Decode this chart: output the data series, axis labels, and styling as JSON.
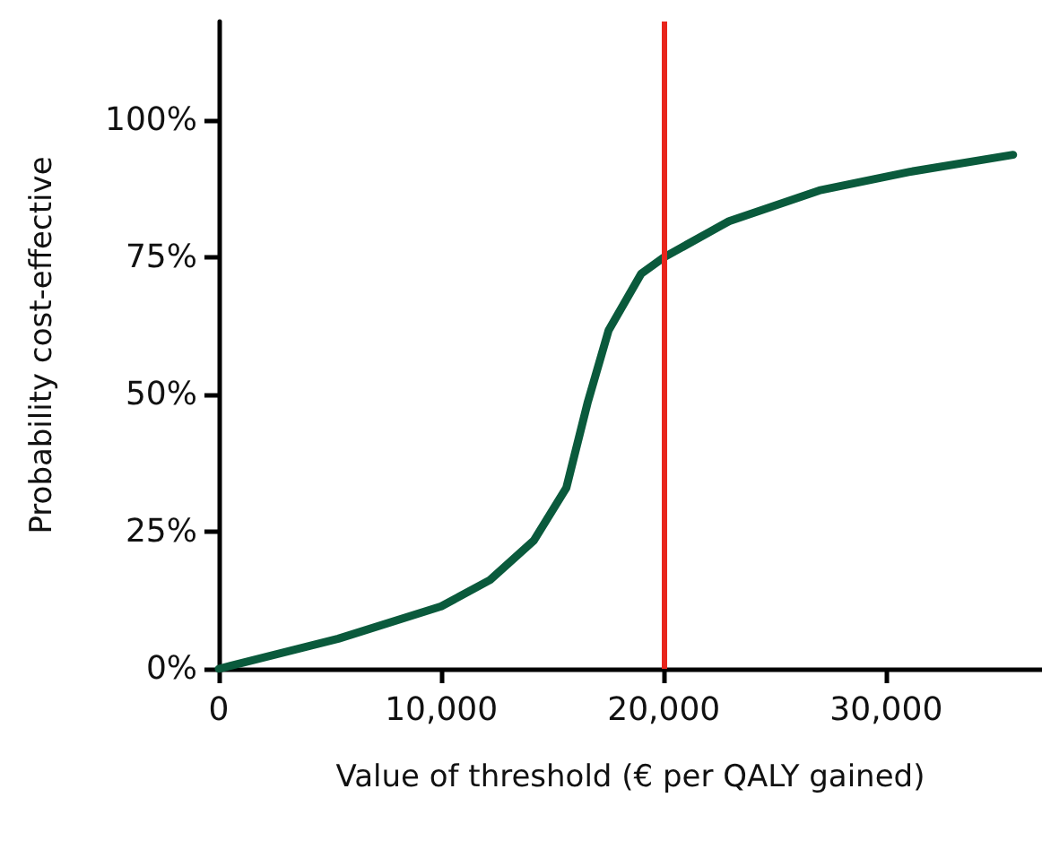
{
  "chart_data": {
    "type": "line",
    "xlabel": "Value of threshold (€ per QALY gained)",
    "ylabel": "Probability cost-effective",
    "x": [
      0,
      5370,
      10000,
      12190,
      14160,
      15620,
      16570,
      17520,
      18980,
      20000,
      22930,
      26990,
      31060,
      35700
    ],
    "series": [
      {
        "color": "#0a5a3c",
        "values": [
          0,
          5.5,
          11.4,
          16.2,
          23.4,
          33,
          48.4,
          61.7,
          72,
          75,
          81.6,
          87.2,
          90.6,
          93.7
        ]
      }
    ],
    "xlim": [
      0,
      37000
    ],
    "xticks": [
      0,
      {
        "value": 10000,
        "label": "10,000"
      },
      {
        "value": 20000,
        "label": "20,000"
      },
      {
        "value": 30000,
        "label": "30,000"
      }
    ],
    "ylim": [
      0,
      118
    ],
    "yticks": [
      {
        "value": 0,
        "label": "0%"
      },
      {
        "value": 25,
        "label": "25%"
      },
      {
        "value": 50,
        "label": "50%"
      },
      {
        "value": 75,
        "label": "75%"
      },
      {
        "value": 100,
        "label": "100%"
      }
    ],
    "ref_lines": [
      {
        "axis": "x",
        "value": 20000,
        "color": "#e8251c"
      }
    ],
    "grid": false,
    "marker": "none",
    "line_style": "solid"
  }
}
